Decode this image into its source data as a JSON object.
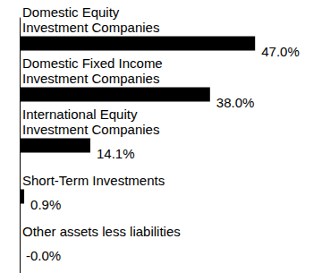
{
  "chart_data": {
    "type": "bar",
    "orientation": "horizontal",
    "categories": [
      "Domestic Equity\nInvestment Companies",
      "Domestic Fixed Income\nInvestment Companies",
      "International Equity\nInvestment Companies",
      "Short-Term Investments",
      "Other assets less liabilities"
    ],
    "values": [
      47.0,
      38.0,
      14.1,
      0.9,
      0
    ],
    "value_labels": [
      "47.0%",
      "38.0%",
      "14.1%",
      "0.9%",
      "-0.0%"
    ],
    "color": "#000000",
    "xlim": [
      0,
      50
    ],
    "grid": false,
    "data_labels": true,
    "tick_labels": false
  }
}
